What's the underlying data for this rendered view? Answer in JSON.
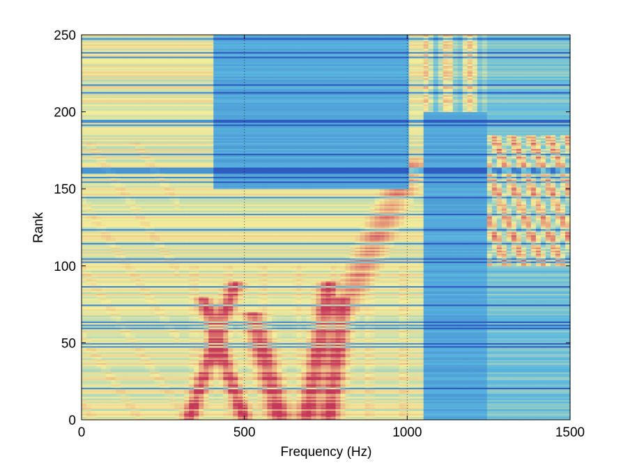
{
  "chart_data": {
    "type": "heatmap",
    "title": "",
    "xlabel": "Frequency (Hz)",
    "ylabel": "Rank",
    "xlim": [
      0,
      1500
    ],
    "ylim": [
      0,
      250
    ],
    "xticks": [
      0,
      500,
      1000,
      1500
    ],
    "yticks": [
      0,
      50,
      100,
      150,
      200,
      250
    ],
    "xtick_labels": [
      "0",
      "500",
      "1000",
      "1500"
    ],
    "ytick_labels": [
      "0",
      "50",
      "100",
      "150",
      "200",
      "250"
    ],
    "grid": "dotted vertical lines at x ticks",
    "colormap": {
      "low": "#2e5cc0",
      "mid_low": "#5cb9e0",
      "mid": "#f4ee9a",
      "high": "#e69a7a",
      "max": "#c4385a"
    },
    "intensity_regions": [
      {
        "x": [
          0,
          300
        ],
        "y": [
          0,
          250
        ],
        "level": "mixed, yellow bands below 180"
      },
      {
        "x": [
          300,
          1050
        ],
        "y": [
          0,
          100
        ],
        "level": "high, red V-shaped ridges"
      },
      {
        "x": [
          450,
          550
        ],
        "y": [
          0,
          80
        ],
        "level": "peak ridge"
      },
      {
        "x": [
          680,
          800
        ],
        "y": [
          0,
          80
        ],
        "level": "peak ridge"
      },
      {
        "x": [
          850,
          1050
        ],
        "y": [
          80,
          160
        ],
        "level": "moderate to high"
      },
      {
        "x": [
          1050,
          1250
        ],
        "y": [
          0,
          200
        ],
        "level": "low, blue"
      },
      {
        "x": [
          1050,
          1250
        ],
        "y": [
          200,
          250
        ],
        "level": "moderate"
      },
      {
        "x": [
          1250,
          1500
        ],
        "y": [
          100,
          180
        ],
        "level": "high"
      },
      {
        "x": [
          400,
          1000
        ],
        "y": [
          150,
          250
        ],
        "level": "low, blue"
      }
    ]
  }
}
